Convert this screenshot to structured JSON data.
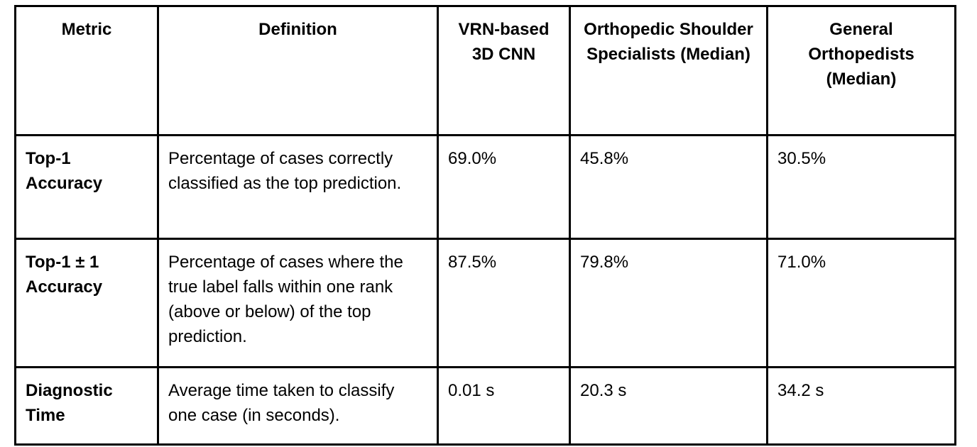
{
  "table": {
    "headers": [
      "Metric",
      "Definition",
      "VRN-based 3D CNN",
      "Orthopedic Shoulder Specialists (Median)",
      "General Orthopedists (Median)"
    ],
    "rows": [
      {
        "metric": "Top-1 Accuracy",
        "definition": "Percentage of cases correctly classified as the top prediction.",
        "vrn": "69.0%",
        "specialists": "45.8%",
        "general": "30.5%"
      },
      {
        "metric": "Top-1 ± 1 Accuracy",
        "definition": "Percentage of cases where the true label falls within one rank (above or below) of the top prediction.",
        "vrn": "87.5%",
        "specialists": "79.8%",
        "general": "71.0%"
      },
      {
        "metric": "Diagnostic Time",
        "definition": "Average time taken to classify one case (in seconds).",
        "vrn": "0.01 s",
        "specialists": "20.3 s",
        "general": "34.2 s"
      }
    ]
  }
}
